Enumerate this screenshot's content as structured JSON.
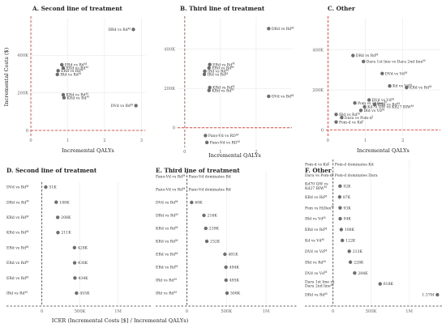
{
  "chart_data": [
    {
      "panel": "A",
      "type": "scatter",
      "title": "A. Second line of treatment",
      "xlabel": "Incremental QALYs",
      "ylabel": "Incremental Costs ($)",
      "xlim": [
        0,
        3.1
      ],
      "ylim": [
        -30000,
        600000
      ],
      "xticks": [
        0,
        1,
        2,
        3
      ],
      "xticklabels": [
        "0",
        "1",
        "2",
        "3"
      ],
      "yticks": [
        0,
        200000,
        400000
      ],
      "yticklabels": [
        "0",
        "200K",
        "400K"
      ],
      "points": [
        {
          "label": "DRd vs Rd",
          "sup": "M",
          "x": 2.78,
          "y": 538000
        },
        {
          "label": "ERd vs Rd",
          "sup": "M",
          "x": 0.84,
          "y": 350000
        },
        {
          "label": "ERd vs Rd",
          "sup": "M",
          "x": 0.88,
          "y": 333000
        },
        {
          "label": "ERd vs Rd",
          "sup": "M",
          "x": 0.74,
          "y": 318000
        },
        {
          "label": "IRd vs Rd",
          "sup": "M",
          "x": 0.72,
          "y": 298000
        },
        {
          "label": "KRd vs Rd",
          "sup": "M",
          "x": 0.88,
          "y": 190000
        },
        {
          "label": "KRd vs Rd",
          "sup": "M",
          "x": 0.9,
          "y": 174000
        },
        {
          "label": "DVd vs Bd",
          "sup": "M",
          "x": 2.85,
          "y": 132000
        }
      ]
    },
    {
      "panel": "B",
      "type": "scatter",
      "title": "B. Third line of treatment",
      "xlabel": "Incremental QALYs",
      "ylabel": "",
      "xlim": [
        -0.2,
        3.0
      ],
      "ylim": [
        -100000,
        560000
      ],
      "xticks": [
        0,
        1,
        2
      ],
      "xticklabels": [
        "0",
        "1",
        "2"
      ],
      "yticks": [
        0,
        200000,
        400000
      ],
      "yticklabels": [
        "0",
        "200K",
        "400K"
      ],
      "points": [
        {
          "label": "DRd vs Rd",
          "sup": "M",
          "x": 2.35,
          "y": 505000
        },
        {
          "label": "ERd vs Rd",
          "sup": "M",
          "x": 0.7,
          "y": 322000
        },
        {
          "label": "ERd vs Rd",
          "sup": "M",
          "x": 0.68,
          "y": 305000
        },
        {
          "label": "IRd vs Rd",
          "sup": "M",
          "x": 0.56,
          "y": 288000
        },
        {
          "label": "IRd vs Rd",
          "sup": "M",
          "x": 0.55,
          "y": 272000
        },
        {
          "label": "KRd vs Rd",
          "sup": "M",
          "x": 0.7,
          "y": 205000
        },
        {
          "label": "KRd vs Rd",
          "sup": "M",
          "x": 0.68,
          "y": 190000
        },
        {
          "label": "DVd vs Bd",
          "sup": "M",
          "x": 2.35,
          "y": 160000
        },
        {
          "label": "Pano-Vd vs RD",
          "sup": "M",
          "x": 0.58,
          "y": -40000
        },
        {
          "label": "Pano-Vd vs RD",
          "sup": "M",
          "x": 0.62,
          "y": -75000
        }
      ]
    },
    {
      "panel": "C",
      "type": "scatter",
      "title": "C. Other",
      "xlabel": "Incremental QALYs",
      "ylabel": "",
      "xlim": [
        -0.05,
        3.0
      ],
      "ylim": [
        -30000,
        560000
      ],
      "xticks": [
        0,
        1,
        2
      ],
      "xticklabels": [
        "0",
        "1",
        "2"
      ],
      "yticks": [
        0,
        200000,
        400000
      ],
      "yticklabels": [
        "0",
        "200K",
        "400K"
      ],
      "points": [
        {
          "label": "DRd vs Rd",
          "sup": "M",
          "x": 0.67,
          "y": 372000
        },
        {
          "label": "Dara 1st line vs Dara 2nd line",
          "sup": "M",
          "x": 0.95,
          "y": 342000
        },
        {
          "label": "DVd vs Vd",
          "sup": "M",
          "x": 1.45,
          "y": 282000
        },
        {
          "label": "Kd vs Vd",
          "sup": "M",
          "x": 1.65,
          "y": 220000
        },
        {
          "label": "KRd vs Rd",
          "sup": "M",
          "x": 2.1,
          "y": 212000
        },
        {
          "label": "DVd vs Vd",
          "sup": "M",
          "x": 1.1,
          "y": 150000
        },
        {
          "label": "Pom vs HiDex",
          "sup": "M",
          "x": 0.72,
          "y": 135000
        },
        {
          "label": "KRd vs Rd",
          "sup": "M",
          "x": 1.25,
          "y": 128000
        },
        {
          "label": "Kd70 QW vs Kd27 BIW",
          "sup": "M",
          "x": 0.98,
          "y": 116000
        },
        {
          "label": "IRd vs Vd",
          "sup": "M",
          "x": 0.88,
          "y": 98000
        },
        {
          "label": "IRd vs Rd",
          "sup": "M",
          "x": 0.22,
          "y": 78000
        },
        {
          "label": "Dara vs Pom-d",
          "sup": "J",
          "x": 0.37,
          "y": 62000
        },
        {
          "label": "Pom-d vs Kd",
          "sup": "J",
          "x": 0.22,
          "y": 40000
        }
      ]
    },
    {
      "panel": "D",
      "type": "scatter",
      "title": "D. Second line of treatment",
      "xlabel": "ICER (Incremental Costs [$] / Incremental QALYs)",
      "ylabel": "",
      "xlim": [
        -60000,
        1430000
      ],
      "xticks": [
        0,
        500000,
        1000000
      ],
      "xticklabels": [
        "0",
        "500K",
        "1M"
      ],
      "rows": [
        {
          "label": "DVd vs Bd",
          "sup": "M",
          "value": 51000,
          "text": "51K"
        },
        {
          "label": "DRd vs Rd",
          "sup": "M",
          "value": 188000,
          "text": "188K"
        },
        {
          "label": "KRd vs Rd",
          "sup": "M",
          "value": 208000,
          "text": "208K"
        },
        {
          "label": "KRd vs Rd",
          "sup": "M",
          "value": 211000,
          "text": "211K"
        },
        {
          "label": "ERd vs Rd",
          "sup": "M",
          "value": 428000,
          "text": "428K"
        },
        {
          "label": "ERd vs Rd",
          "sup": "M",
          "value": 430000,
          "text": "430K"
        },
        {
          "label": "ERd vs Rd",
          "sup": "M",
          "value": 434000,
          "text": "434K"
        },
        {
          "label": "IRd vs Rd",
          "sup": "M",
          "value": 455000,
          "text": "455K"
        }
      ]
    },
    {
      "panel": "E",
      "type": "scatter",
      "title": "E. Third line of treatment",
      "xlabel": "",
      "ylabel": "",
      "xlim": [
        -15000,
        1400000
      ],
      "xticks": [
        0,
        500000,
        1000000
      ],
      "xticklabels": [
        "0",
        "500K",
        "1M"
      ],
      "rows": [
        {
          "label": "Pano-Vd vs Rd",
          "sup": "M",
          "value": null,
          "text": "Pano-Vd dominates Rd"
        },
        {
          "label": "Pano-Vd vs Rd",
          "sup": "M",
          "value": null,
          "text": "Pano-Vd dominates Rd"
        },
        {
          "label": "DVd vs Bd",
          "sup": "M",
          "value": 60000,
          "text": "60K"
        },
        {
          "label": "DRd vs Rd",
          "sup": "M",
          "value": 216000,
          "text": "216K"
        },
        {
          "label": "KRd vs Rd",
          "sup": "M",
          "value": 239000,
          "text": "239K"
        },
        {
          "label": "KRd vs Rd",
          "sup": "M",
          "value": 252000,
          "text": "252K"
        },
        {
          "label": "ERd vs Rd",
          "sup": "M",
          "value": 481000,
          "text": "481K"
        },
        {
          "label": "ERd vs Rd",
          "sup": "M",
          "value": 494000,
          "text": "494K"
        },
        {
          "label": "IRd vs Rd",
          "sup": "M",
          "value": 495000,
          "text": "495K"
        },
        {
          "label": "IRd vs Rd",
          "sup": "M",
          "value": 508000,
          "text": "508K"
        }
      ]
    },
    {
      "panel": "F",
      "type": "scatter",
      "title": "F. Other",
      "xlabel": "",
      "ylabel": "",
      "xlim": [
        -50000,
        1430000
      ],
      "xticks": [
        0,
        500000,
        1000000
      ],
      "xticklabels": [
        "0",
        "500K",
        "1M"
      ],
      "rows": [
        {
          "label": "Pom-d vs Kd",
          "sup": "J",
          "value": null,
          "text": "Pom-d dominates Kd"
        },
        {
          "label": "Dara vs Pom-d",
          "sup": "J",
          "value": null,
          "text": "Pom-d dominates Dara"
        },
        {
          "label": "Kd70 QW vs Kd27 BIW",
          "sup": "M",
          "value": 92000,
          "text": "92K"
        },
        {
          "label": "KRd vs Rd",
          "sup": "M",
          "value": 87000,
          "text": "87K"
        },
        {
          "label": "Pom vs HiDex",
          "sup": "M",
          "value": 93000,
          "text": "93K"
        },
        {
          "label": "IRd vs Vd",
          "sup": "M",
          "value": 94000,
          "text": "94K"
        },
        {
          "label": "KRd vs Rd",
          "sup": "M",
          "value": 108000,
          "text": "108K"
        },
        {
          "label": "Kd vs Vd",
          "sup": "M",
          "value": 122000,
          "text": "122K"
        },
        {
          "label": "DVd vs Vd",
          "sup": "M",
          "value": 213000,
          "text": "213K"
        },
        {
          "label": "IRd vs Rd",
          "sup": "M",
          "value": 228000,
          "text": "228K"
        },
        {
          "label": "DVd vs Vd",
          "sup": "M",
          "value": 284000,
          "text": "284K"
        },
        {
          "label": "Dara 1st line vs Dara 2nd line",
          "sup": "M",
          "value": 618000,
          "text": "618K"
        },
        {
          "label": "DRd vs Rd",
          "sup": "M",
          "value": 1370000,
          "text": "1.37M"
        }
      ]
    }
  ]
}
